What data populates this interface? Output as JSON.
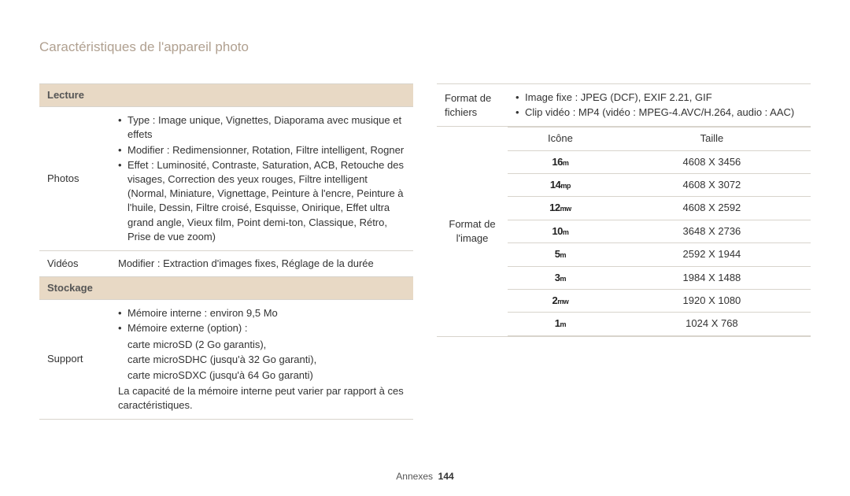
{
  "page": {
    "title": "Caractéristiques de l'appareil photo",
    "footer_label": "Annexes",
    "page_number": "144"
  },
  "left": {
    "section1": "Lecture",
    "photos_label": "Photos",
    "photos_b1": "Type : Image unique, Vignettes, Diaporama avec musique et effets",
    "photos_b2": "Modifier : Redimensionner, Rotation, Filtre intelligent, Rogner",
    "photos_b3": "Effet : Luminosité, Contraste, Saturation, ACB, Retouche des visages, Correction des yeux rouges, Filtre intelligent (Normal, Miniature, Vignettage, Peinture à l'encre, Peinture à l'huile, Dessin, Filtre croisé, Esquisse, Onirique, Effet ultra grand angle, Vieux film, Point demi-ton, Classique, Rétro, Prise de vue zoom)",
    "videos_label": "Vidéos",
    "videos_text": "Modifier : Extraction d'images fixes, Réglage de la durée",
    "section2": "Stockage",
    "support_label": "Support",
    "sup_b1": "Mémoire interne : environ 9,5 Mo",
    "sup_b2": "Mémoire externe (option) :",
    "sup_s1": "carte microSD (2 Go garantis),",
    "sup_s2": "carte microSDHC (jusqu'à 32 Go garanti),",
    "sup_s3": "carte microSDXC (jusqu'à 64 Go garanti)",
    "sup_note": "La capacité de la mémoire interne peut varier par rapport à ces caractéristiques."
  },
  "right": {
    "format_fichiers_label": "Format de fichiers",
    "ff_b1": "Image fixe : JPEG (DCF), EXIF 2.21, GIF",
    "ff_b2": "Clip vidéo : MP4 (vidéo : MPEG-4.AVC/H.264, audio : AAC)",
    "format_image_label": "Format de l'image",
    "head_icone": "Icône",
    "head_taille": "Taille",
    "rows": [
      {
        "icon_big": "16",
        "icon_sub": "M",
        "size": "4608 X 3456"
      },
      {
        "icon_big": "14",
        "icon_sub": "MP",
        "size": "4608 X 3072"
      },
      {
        "icon_big": "12",
        "icon_sub": "MW",
        "size": "4608 X 2592"
      },
      {
        "icon_big": "10",
        "icon_sub": "M",
        "size": "3648 X 2736"
      },
      {
        "icon_big": "5",
        "icon_sub": "M",
        "size": "2592 X 1944"
      },
      {
        "icon_big": "3",
        "icon_sub": "M",
        "size": "1984 X 1488"
      },
      {
        "icon_big": "2",
        "icon_sub": "MW",
        "size": "1920 X 1080"
      },
      {
        "icon_big": "1",
        "icon_sub": "M",
        "size": "1024 X 768"
      }
    ]
  }
}
